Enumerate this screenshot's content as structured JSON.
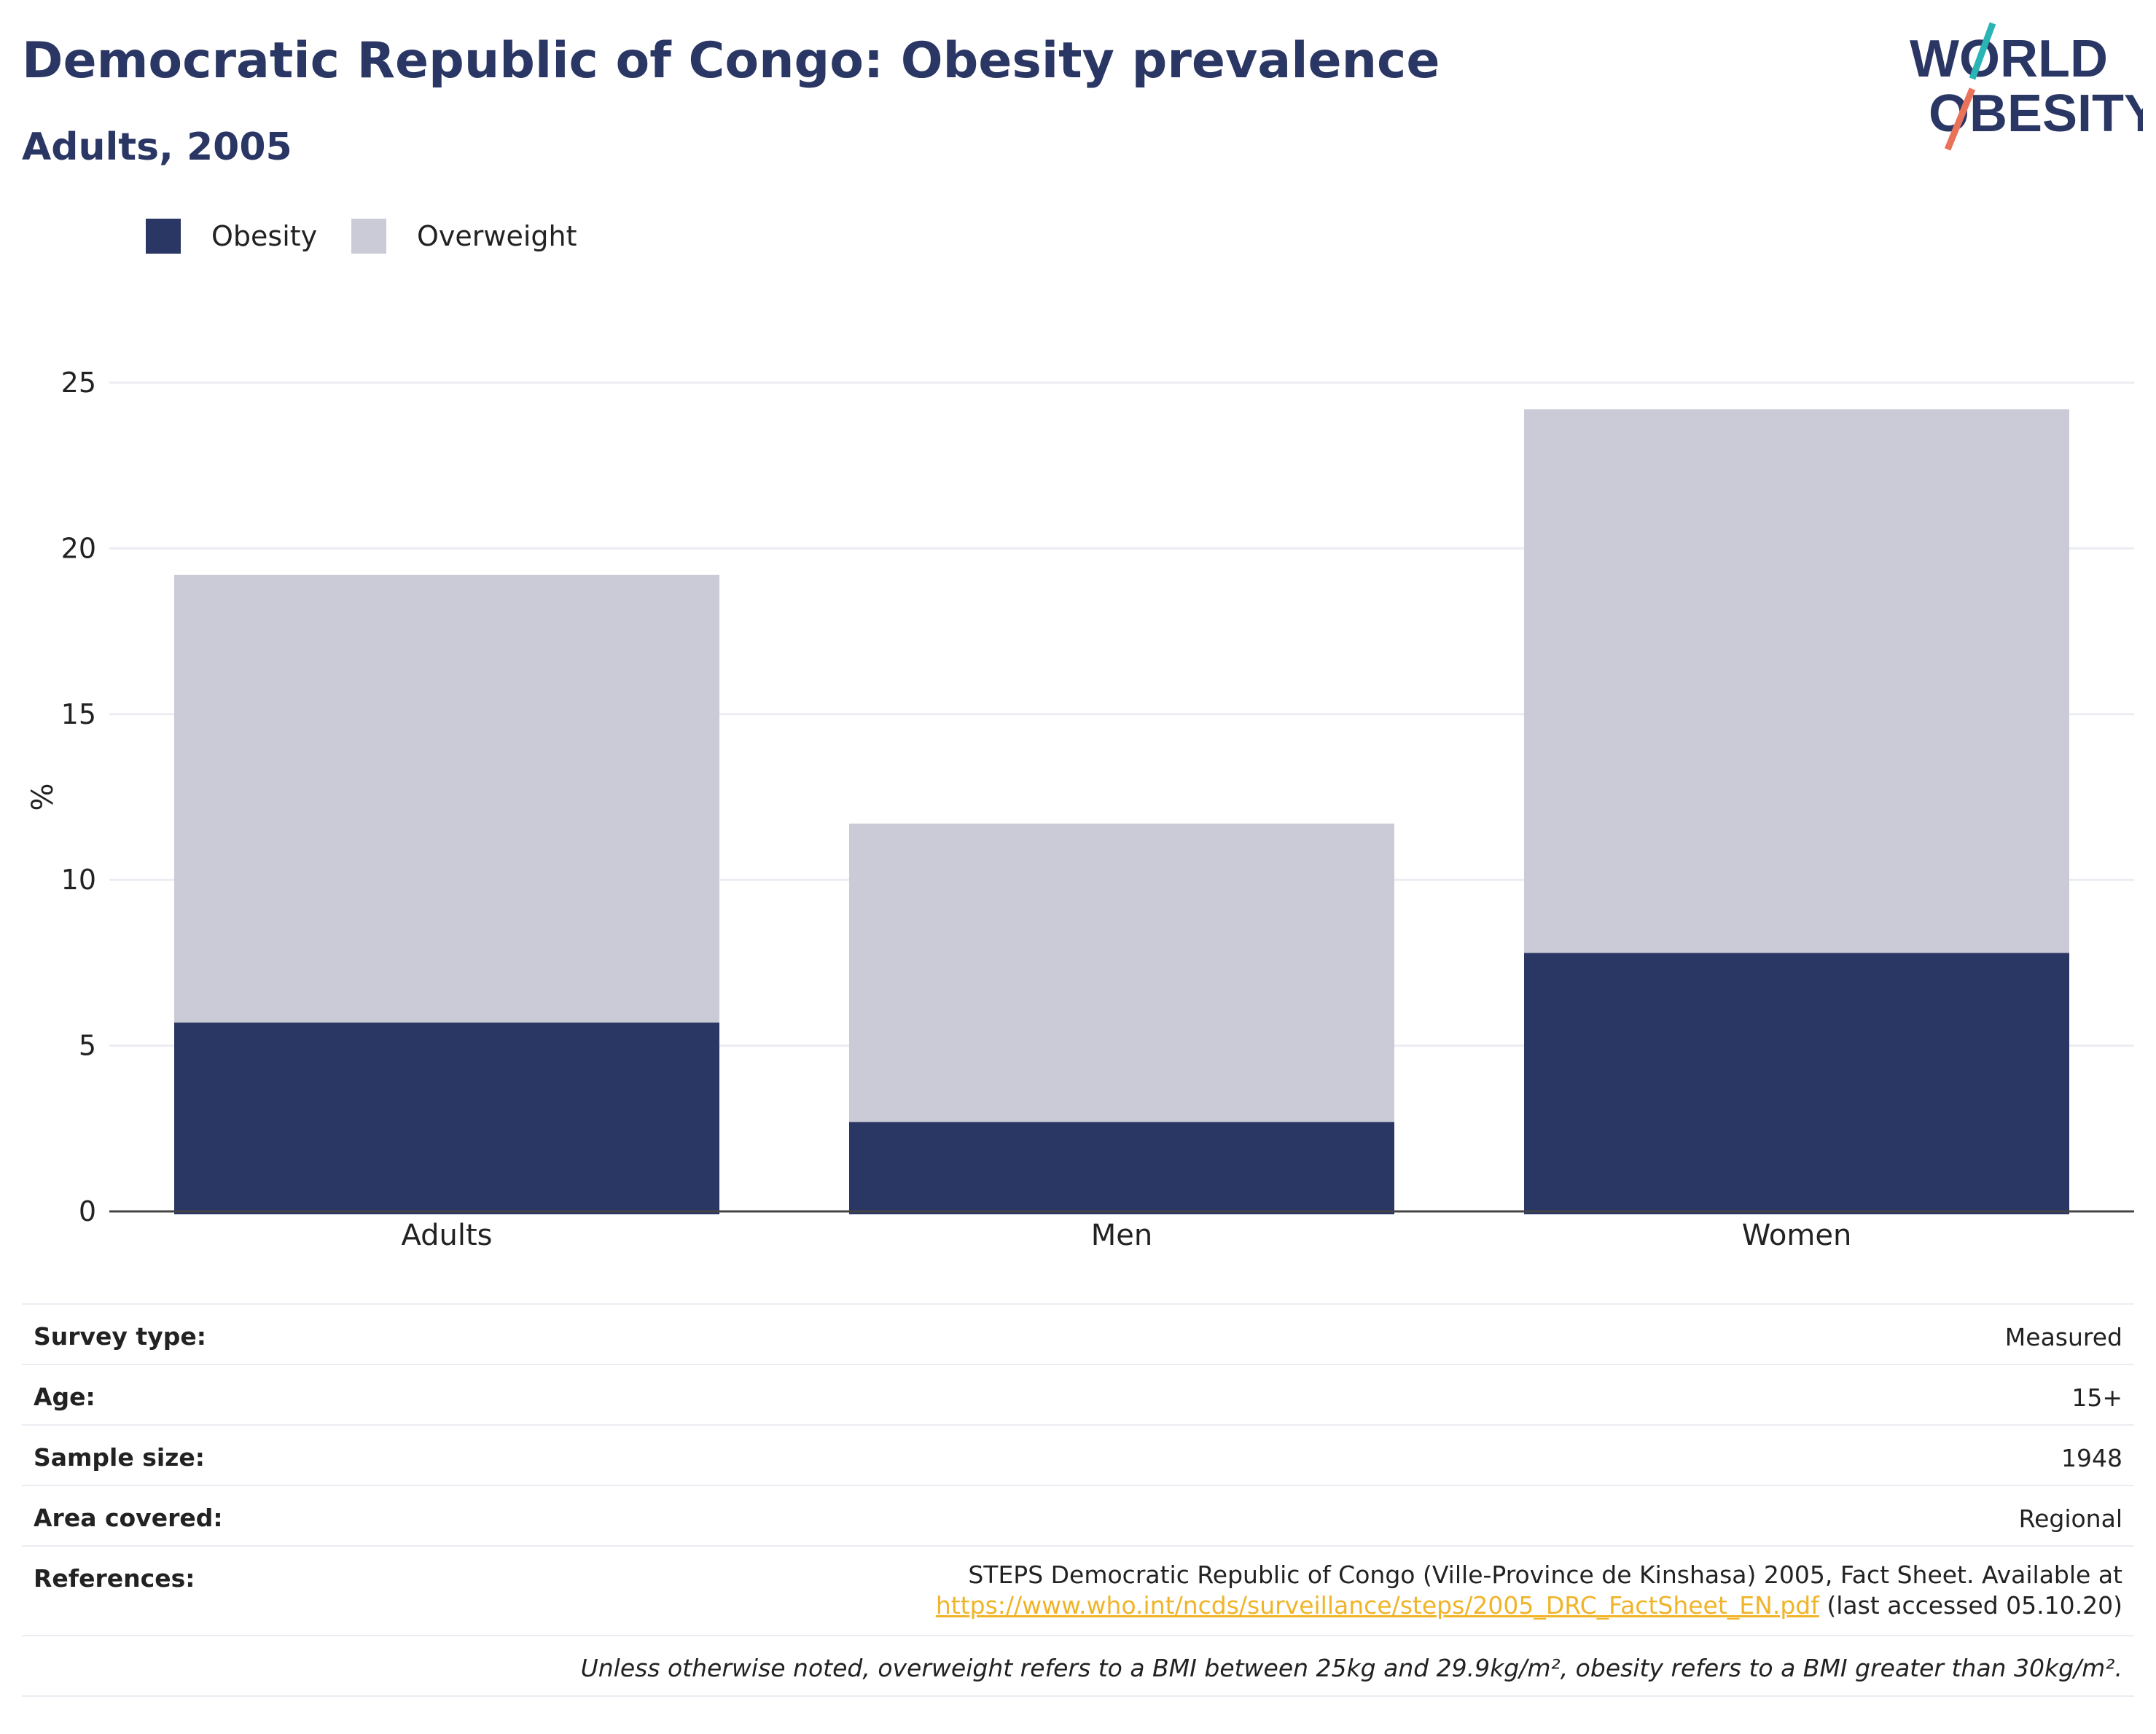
{
  "header": {
    "title": "Democratic Republic of Congo: Obesity prevalence",
    "subtitle": "Adults, 2005"
  },
  "logo": {
    "line1": "WORLD",
    "line2": "OBESITY",
    "colors": {
      "text": "#2a3663",
      "slash_top": "#2ab4b4",
      "slash_bottom": "#e8735a"
    }
  },
  "legend": [
    {
      "label": "Obesity",
      "color": "#2a3663"
    },
    {
      "label": "Overweight",
      "color": "#cacbd6"
    }
  ],
  "chart_data": {
    "type": "bar",
    "stacked": true,
    "categories": [
      "Adults",
      "Men",
      "Women"
    ],
    "series": [
      {
        "name": "Obesity",
        "color": "#2a3663",
        "values": [
          5.7,
          2.7,
          7.8
        ]
      },
      {
        "name": "Overweight",
        "color": "#cacbd6",
        "values": [
          13.5,
          9.0,
          16.4
        ]
      }
    ],
    "totals": [
      19.2,
      11.7,
      24.2
    ],
    "ylabel": "%",
    "ylim": [
      0,
      25
    ],
    "yticks": [
      "0",
      "5",
      "10",
      "15",
      "20",
      "25"
    ],
    "grid": true,
    "legend_position": "top-left"
  },
  "details": {
    "survey_type": {
      "label": "Survey type:",
      "value": "Measured"
    },
    "age": {
      "label": "Age:",
      "value": "15+"
    },
    "sample_size": {
      "label": "Sample size:",
      "value": "1948"
    },
    "area_covered": {
      "label": "Area covered:",
      "value": "Regional"
    },
    "references": {
      "label": "References:",
      "line1": "STEPS Democratic Republic of Congo (Ville-Province de Kinshasa) 2005, Fact Sheet. Available at",
      "link": "https://www.who.int/ncds/surveillance/steps/2005_DRC_FactSheet_EN.pdf",
      "suffix": " (last accessed 05.10.20)"
    },
    "note": "Unless otherwise noted, overweight refers to a BMI between 25kg and 29.9kg/m², obesity refers to a BMI greater than 30kg/m²."
  }
}
